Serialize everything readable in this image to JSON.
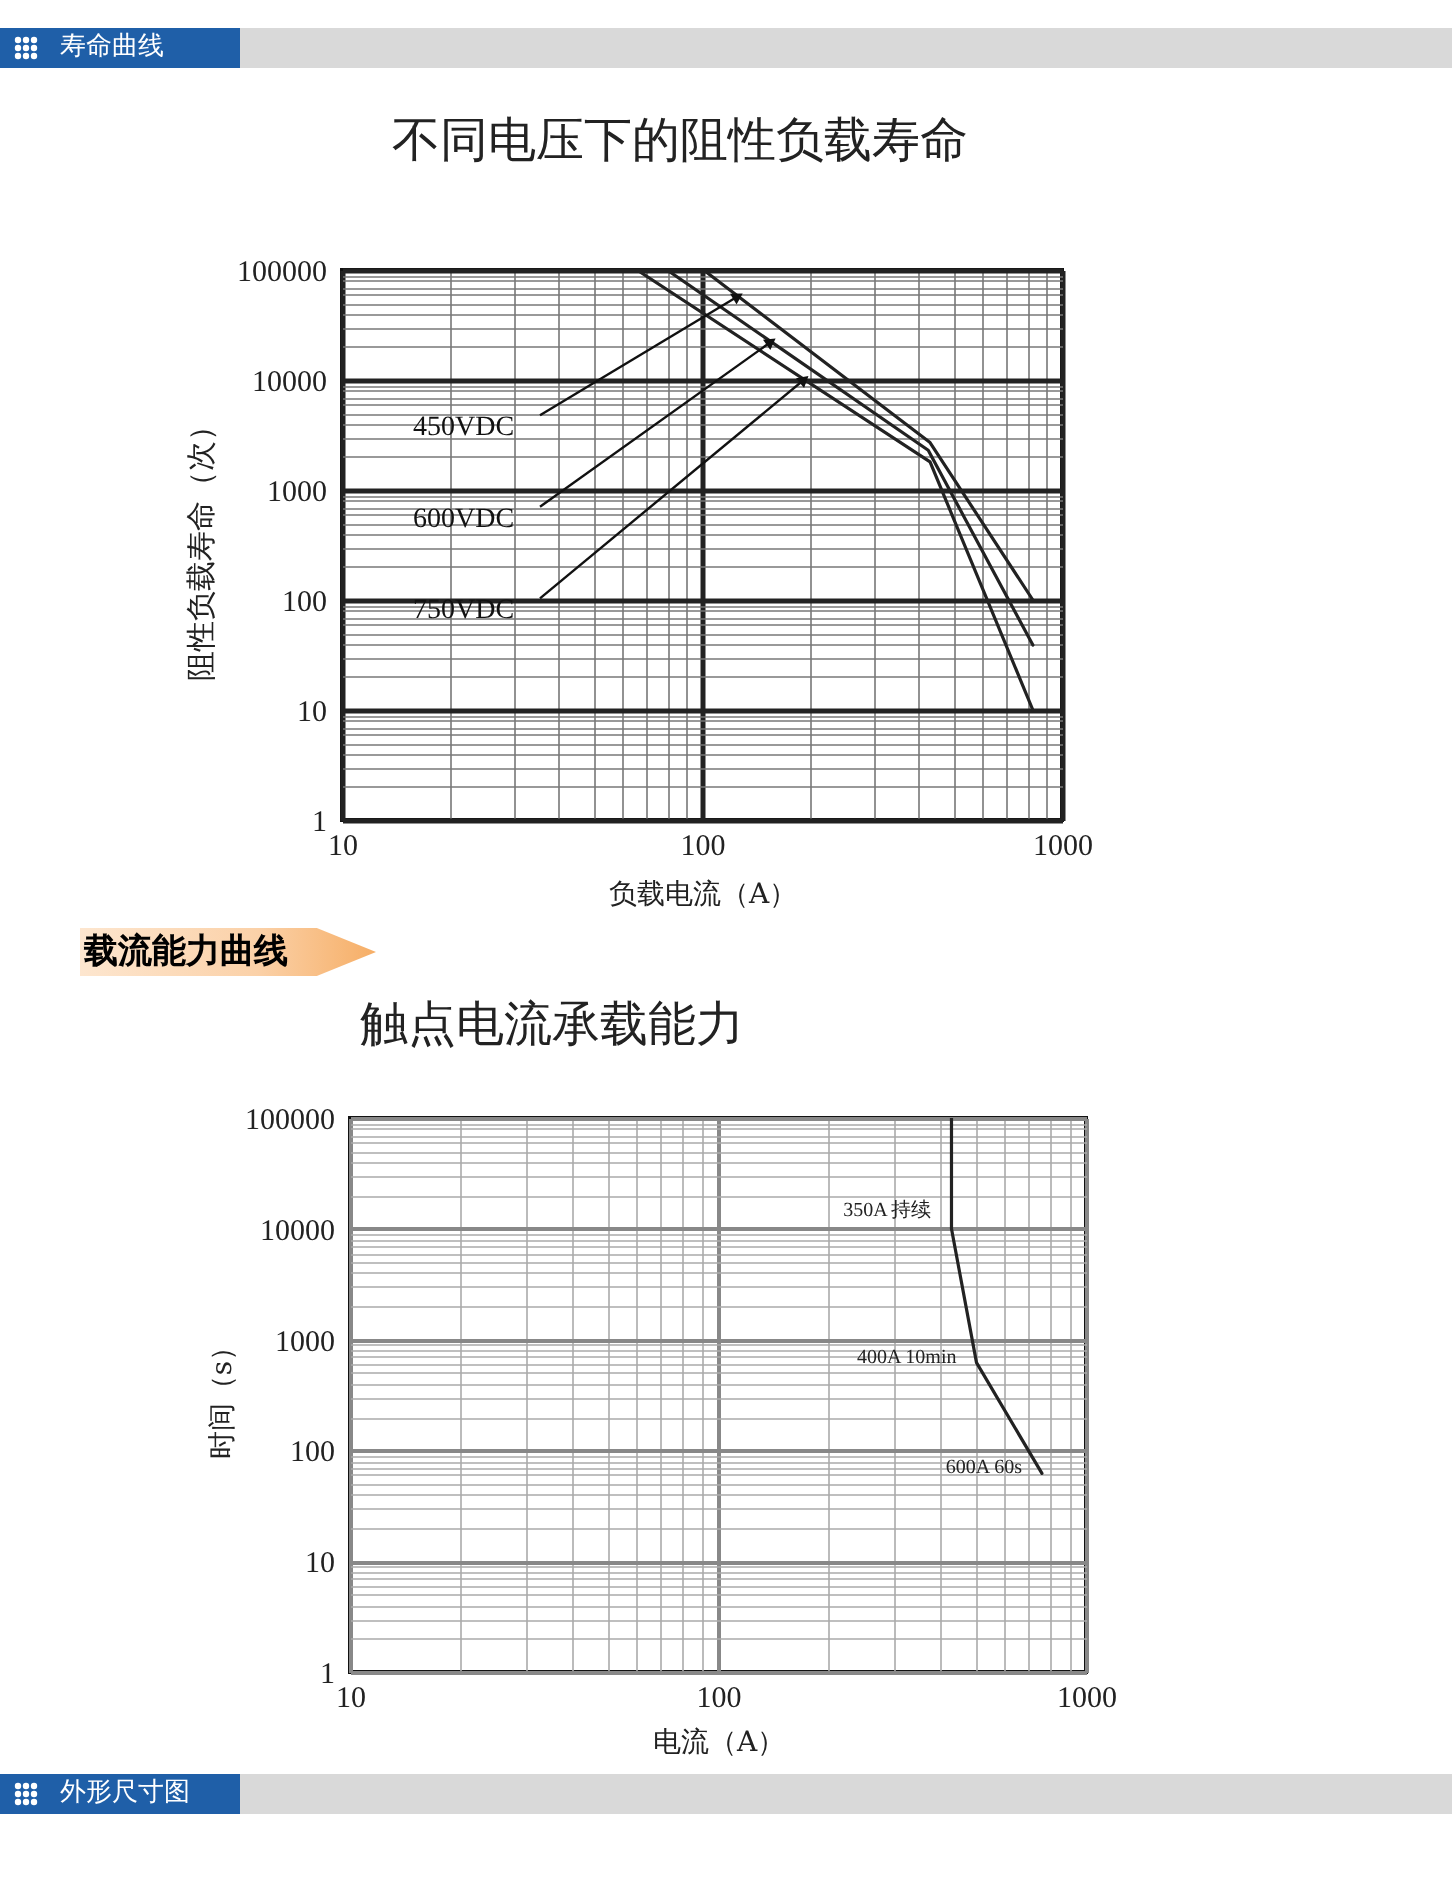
{
  "chart_data": [
    {
      "type": "line",
      "title": "寿命曲线",
      "subtitle": "不同电压下的阻性负载寿命",
      "xlabel": "负载电流（A）",
      "ylabel": "阻性负载寿命（次）",
      "series": [
        {
          "name": "450VDC",
          "color": "#222222",
          "x": [
            101,
            430,
            830
          ],
          "values": [
            100000,
            2700,
            100
          ]
        },
        {
          "name": "600VDC",
          "color": "#222222",
          "x": [
            80,
            425,
            830
          ],
          "values": [
            100000,
            2300,
            39
          ]
        },
        {
          "name": "750VDC",
          "color": "#222222",
          "x": [
            66,
            430,
            830
          ],
          "values": [
            100000,
            1800,
            10
          ]
        }
      ],
      "xlim": [
        10,
        1000
      ],
      "ylim": [
        1,
        100000
      ],
      "xticks": [
        10,
        {
          "value": 20,
          "label": null
        },
        {
          "value": 30,
          "label": null
        },
        {
          "value": 40,
          "label": null
        },
        {
          "value": 50,
          "label": null
        },
        {
          "value": 60,
          "label": null
        },
        {
          "value": 70,
          "label": null
        },
        {
          "value": 80,
          "label": null
        },
        {
          "value": 90,
          "label": null
        },
        100,
        {
          "value": 200,
          "label": null
        },
        {
          "value": 300,
          "label": null
        },
        {
          "value": 400,
          "label": null
        },
        {
          "value": 500,
          "label": null
        },
        {
          "value": 600,
          "label": null
        },
        {
          "value": 700,
          "label": null
        },
        {
          "value": 800,
          "label": null
        },
        {
          "value": 900,
          "label": null
        },
        1000
      ],
      "yticks": [
        1,
        {
          "value": 2,
          "label": null
        },
        {
          "value": 3,
          "label": null
        },
        {
          "value": 4,
          "label": null
        },
        {
          "value": 5,
          "label": null
        },
        {
          "value": 6,
          "label": null
        },
        {
          "value": 7,
          "label": null
        },
        {
          "value": 8,
          "label": null
        },
        {
          "value": 9,
          "label": null
        },
        10,
        {
          "value": 20,
          "label": null
        },
        {
          "value": 30,
          "label": null
        },
        {
          "value": 40,
          "label": null
        },
        {
          "value": 50,
          "label": null
        },
        {
          "value": 60,
          "label": null
        },
        {
          "value": 70,
          "label": null
        },
        {
          "value": 80,
          "label": null
        },
        {
          "value": 90,
          "label": null
        },
        100,
        {
          "value": 200,
          "label": null
        },
        {
          "value": 300,
          "label": null
        },
        {
          "value": 400,
          "label": null
        },
        {
          "value": 500,
          "label": null
        },
        {
          "value": 600,
          "label": null
        },
        {
          "value": 700,
          "label": null
        },
        {
          "value": 800,
          "label": null
        },
        {
          "value": 900,
          "label": null
        },
        1000,
        {
          "value": 2000,
          "label": null
        },
        {
          "value": 3000,
          "label": null
        },
        {
          "value": 4000,
          "label": null
        },
        {
          "value": 5000,
          "label": null
        },
        {
          "value": 6000,
          "label": null
        },
        {
          "value": 7000,
          "label": null
        },
        {
          "value": 8000,
          "label": null
        },
        {
          "value": 9000,
          "label": null
        },
        10000,
        {
          "value": 20000,
          "label": null
        },
        {
          "value": 30000,
          "label": null
        },
        {
          "value": 40000,
          "label": null
        },
        {
          "value": 50000,
          "label": null
        },
        {
          "value": 60000,
          "label": null
        },
        {
          "value": 70000,
          "label": null
        },
        {
          "value": 80000,
          "label": null
        },
        {
          "value": 90000,
          "label": null
        },
        100000
      ],
      "log": "xy",
      "grid": true
    },
    {
      "type": "line",
      "title": "载流能力曲线",
      "subtitle": "触点电流承载能力",
      "xlabel": "电流（A）",
      "ylabel": "时间（s）",
      "series": [
        {
          "color": "#222222",
          "x": [
            431,
            431,
            504,
            759
          ],
          "values": [
            100000,
            10000,
            620,
            62
          ]
        }
      ],
      "annotations": [
        {
          "text": "350A 持续",
          "x": 431,
          "y": 13000
        },
        {
          "text": "400A 10min",
          "x": 504,
          "y": 620
        },
        {
          "text": "600A 60s",
          "x": 759,
          "y": 62
        },
        "外形尺寸图"
      ],
      "xlim": [
        10,
        1000
      ],
      "ylim": [
        1,
        100000
      ],
      "xticks": [
        10,
        {
          "value": 20,
          "label": null
        },
        {
          "value": 30,
          "label": null
        },
        {
          "value": 40,
          "label": null
        },
        {
          "value": 50,
          "label": null
        },
        {
          "value": 60,
          "label": null
        },
        {
          "value": 70,
          "label": null
        },
        {
          "value": 80,
          "label": null
        },
        {
          "value": 90,
          "label": null
        },
        100,
        {
          "value": 200,
          "label": null
        },
        {
          "value": 300,
          "label": null
        },
        {
          "value": 400,
          "label": null
        },
        {
          "value": 500,
          "label": null
        },
        {
          "value": 600,
          "label": null
        },
        {
          "value": 700,
          "label": null
        },
        {
          "value": 800,
          "label": null
        },
        {
          "value": 900,
          "label": null
        },
        1000
      ],
      "yticks": [
        1,
        {
          "value": 2,
          "label": null
        },
        {
          "value": 3,
          "label": null
        },
        {
          "value": 4,
          "label": null
        },
        {
          "value": 5,
          "label": null
        },
        {
          "value": 6,
          "label": null
        },
        {
          "value": 7,
          "label": null
        },
        {
          "value": 8,
          "label": null
        },
        {
          "value": 9,
          "label": null
        },
        10,
        {
          "value": 20,
          "label": null
        },
        {
          "value": 30,
          "label": null
        },
        {
          "value": 40,
          "label": null
        },
        {
          "value": 50,
          "label": null
        },
        {
          "value": 60,
          "label": null
        },
        {
          "value": 70,
          "label": null
        },
        {
          "value": 80,
          "label": null
        },
        {
          "value": 90,
          "label": null
        },
        100,
        {
          "value": 200,
          "label": null
        },
        {
          "value": 300,
          "label": null
        },
        {
          "value": 400,
          "label": null
        },
        {
          "value": 500,
          "label": null
        },
        {
          "value": 600,
          "label": null
        },
        {
          "value": 700,
          "label": null
        },
        {
          "value": 800,
          "label": null
        },
        {
          "value": 900,
          "label": null
        },
        1000,
        {
          "value": 2000,
          "label": null
        },
        {
          "value": 3000,
          "label": null
        },
        {
          "value": 4000,
          "label": null
        },
        {
          "value": 5000,
          "label": null
        },
        {
          "value": 6000,
          "label": null
        },
        {
          "value": 7000,
          "label": null
        },
        {
          "value": 8000,
          "label": null
        },
        {
          "value": 9000,
          "label": null
        },
        10000,
        {
          "value": 20000,
          "label": null
        },
        {
          "value": 30000,
          "label": null
        },
        {
          "value": 40000,
          "label": null
        },
        {
          "value": 50000,
          "label": null
        },
        {
          "value": 60000,
          "label": null
        },
        {
          "value": 70000,
          "label": null
        },
        {
          "value": 80000,
          "label": null
        },
        {
          "value": 90000,
          "label": null
        },
        100000
      ],
      "log": "xy",
      "grid": true
    }
  ]
}
